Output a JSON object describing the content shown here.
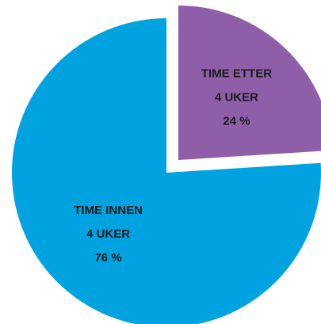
{
  "chart_data": {
    "type": "pie",
    "categories": [
      [
        "TIME ETTER",
        "4 UKER"
      ],
      [
        "TIME INNEN",
        "4 UKER"
      ]
    ],
    "values": [
      24,
      76
    ],
    "value_labels": [
      "24 %",
      "76 %"
    ],
    "colors": [
      "#8e5ea8",
      "#00a3e0"
    ],
    "explode": [
      true,
      false
    ]
  }
}
